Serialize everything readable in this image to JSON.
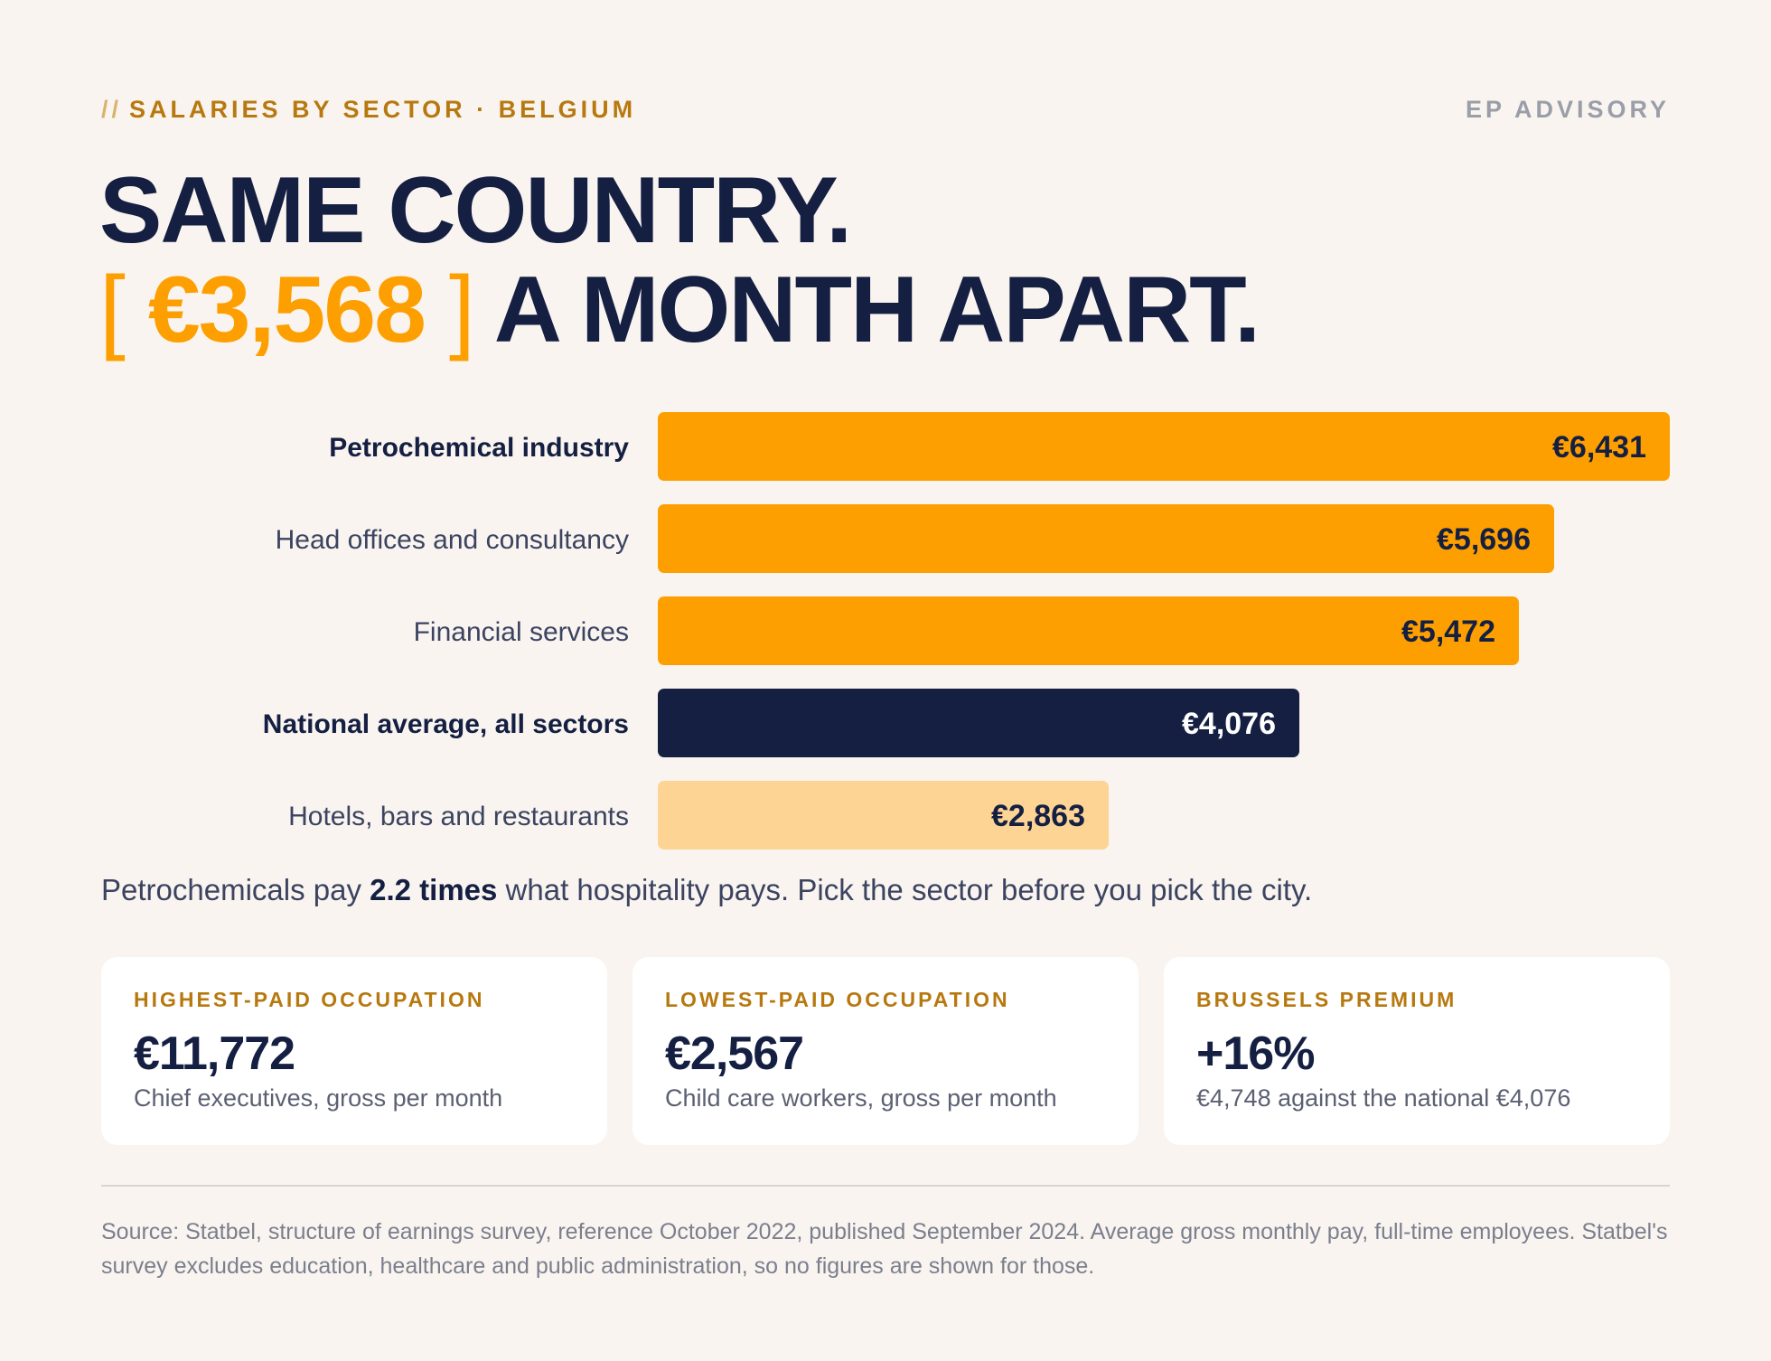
{
  "header": {
    "slashes": "//",
    "eyebrow": "SALARIES BY SECTOR · BELGIUM",
    "brand": "EP ADVISORY"
  },
  "headline": {
    "line1": "SAME COUNTRY.",
    "bracket_open": "[",
    "amount": "€3,568",
    "bracket_close": "]",
    "line2_rest": "A MONTH APART."
  },
  "colors": {
    "orange": "#fd9f00",
    "navy": "#141f42",
    "light_orange": "#fdd493",
    "gold": "#b7790f",
    "background": "#f9f4ef"
  },
  "chart_data": {
    "type": "bar",
    "orientation": "horizontal",
    "unit": "€ per month",
    "categories": [
      "Petrochemical industry",
      "Head offices and consultancy",
      "Financial services",
      "National average, all sectors",
      "Hotels, bars and restaurants"
    ],
    "values": [
      6431,
      5696,
      5472,
      4076,
      2863
    ],
    "value_labels": [
      "€6,431",
      "€5,696",
      "€5,472",
      "€4,076",
      "€2,863"
    ],
    "highlight": [
      true,
      false,
      false,
      true,
      false
    ],
    "bar_colors": [
      "#fd9f00",
      "#fd9f00",
      "#fd9f00",
      "#141f42",
      "#fdd493"
    ],
    "value_text_colors": [
      "#141f42",
      "#141f42",
      "#141f42",
      "#ffffff",
      "#141f42"
    ],
    "xlim": [
      0,
      6431
    ]
  },
  "takeaway": {
    "before": "Petrochemicals pay ",
    "bold": "2.2 times",
    "after": " what hospitality pays. Pick the sector before you pick the city."
  },
  "cards": [
    {
      "kicker": "HIGHEST-PAID OCCUPATION",
      "value": "€11,772",
      "sub": "Chief executives, gross per month"
    },
    {
      "kicker": "LOWEST-PAID OCCUPATION",
      "value": "€2,567",
      "sub": "Child care workers, gross per month"
    },
    {
      "kicker": "BRUSSELS PREMIUM",
      "value": "+16%",
      "sub": "€4,748 against the national €4,076"
    }
  ],
  "source": "Source: Statbel, structure of earnings survey, reference October 2022, published September 2024. Average gross monthly pay, full-time employees. Statbel's survey excludes education, healthcare and public administration, so no figures are shown for those."
}
